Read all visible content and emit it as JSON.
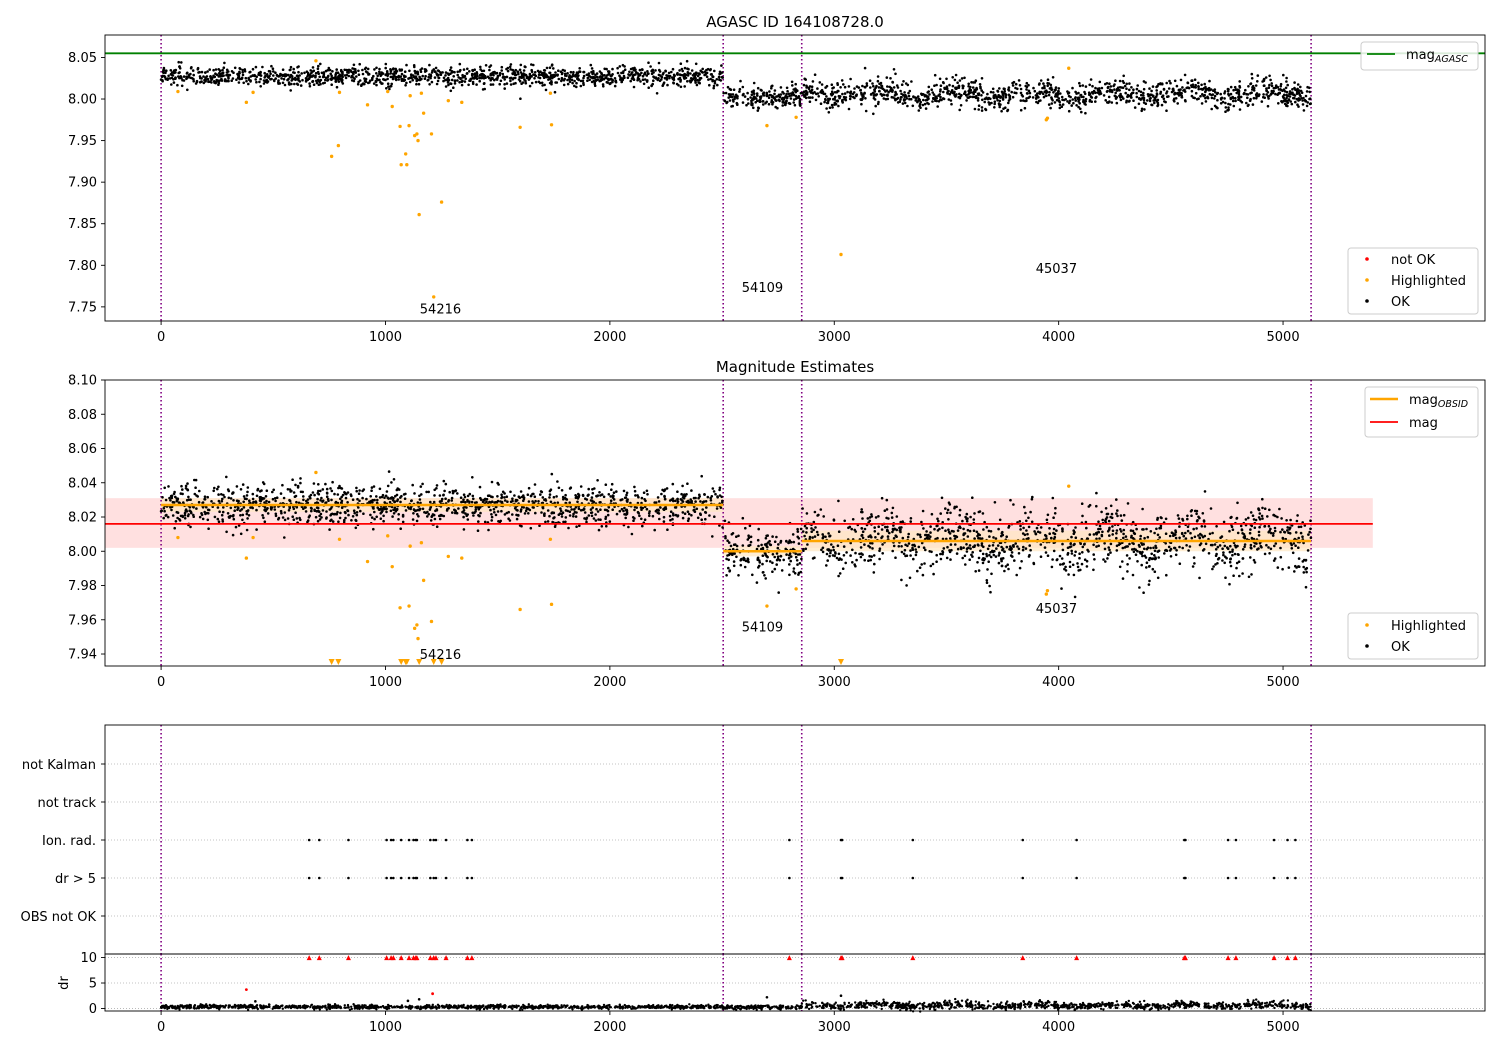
{
  "figure": {
    "title": "AGASC ID 164108728.0"
  },
  "colors": {
    "ok": "#000000",
    "highlighted": "#ffa500",
    "not_ok": "#ff0000",
    "mag_agasc": "#008000",
    "mag_obsid": "#ffa500",
    "mag": "#ff0000",
    "obsid_line": "#800080",
    "band_mag": "#ffcccc",
    "band_obsid": "#ffe7c2"
  },
  "chart_data": [
    {
      "id": "top",
      "type": "scatter",
      "title": "",
      "xlim": [
        -250,
        5900
      ],
      "ylim": [
        7.733,
        8.077
      ],
      "x_ticks": [
        0,
        1000,
        2000,
        3000,
        4000,
        5000
      ],
      "x_tick_labels": [
        "0",
        "1000",
        "2000",
        "3000",
        "4000",
        "5000"
      ],
      "y_ticks": [
        7.75,
        7.8,
        7.85,
        7.9,
        7.95,
        8.0,
        8.05
      ],
      "y_tick_labels": [
        "7.75",
        "7.80",
        "7.85",
        "7.90",
        "7.95",
        "8.00",
        "8.05"
      ],
      "obsid_boundaries": [
        0,
        2505,
        2855,
        5125
      ],
      "obsid_labels": [
        {
          "text": "54216",
          "x": 1245,
          "y": 7.742
        },
        {
          "text": "54109",
          "x": 2680,
          "y": 7.768
        },
        {
          "text": "45037",
          "x": 3990,
          "y": 7.791
        }
      ],
      "mag_agasc": 8.055,
      "legend_upper": {
        "placement": "top-right",
        "entries": [
          "mag_AGASC"
        ],
        "main": "mag",
        "sub": "AGASC"
      },
      "legend_lower": {
        "placement": "bottom-right",
        "entries": [
          "not OK",
          "Highlighted",
          "OK"
        ]
      },
      "series": [
        {
          "name": "OK",
          "segments": [
            {
              "x0": 0,
              "x1": 2505,
              "mean": 8.027,
              "spread": 0.006
            },
            {
              "x0": 2505,
              "x1": 2855,
              "mean": 8.002,
              "spread": 0.006
            },
            {
              "x0": 2855,
              "x1": 5125,
              "mean": 8.006,
              "spread": 0.008
            }
          ]
        },
        {
          "name": "Highlighted",
          "points": [
            [
              75,
              8.009
            ],
            [
              380,
              7.996
            ],
            [
              410,
              8.008
            ],
            [
              690,
              8.046
            ],
            [
              760,
              7.931
            ],
            [
              790,
              7.944
            ],
            [
              795,
              8.008
            ],
            [
              920,
              7.993
            ],
            [
              1010,
              8.009
            ],
            [
              1030,
              7.991
            ],
            [
              1065,
              7.967
            ],
            [
              1070,
              7.921
            ],
            [
              1090,
              7.934
            ],
            [
              1095,
              7.921
            ],
            [
              1105,
              7.968
            ],
            [
              1110,
              8.004
            ],
            [
              1130,
              7.956
            ],
            [
              1140,
              7.958
            ],
            [
              1145,
              7.95
            ],
            [
              1150,
              7.861
            ],
            [
              1160,
              8.007
            ],
            [
              1170,
              7.983
            ],
            [
              1205,
              7.958
            ],
            [
              1215,
              7.762
            ],
            [
              1250,
              7.876
            ],
            [
              1280,
              7.998
            ],
            [
              1340,
              7.996
            ],
            [
              1600,
              7.966
            ],
            [
              1735,
              8.007
            ],
            [
              1740,
              7.969
            ],
            [
              2700,
              7.968
            ],
            [
              2830,
              7.978
            ],
            [
              3030,
              7.813
            ],
            [
              3945,
              7.975
            ],
            [
              3950,
              7.977
            ],
            [
              4045,
              8.037
            ]
          ]
        },
        {
          "name": "not OK",
          "points": []
        }
      ]
    },
    {
      "id": "middle",
      "type": "scatter",
      "title": "Magnitude Estimates",
      "xlim": [
        -250,
        5900
      ],
      "ylim": [
        7.933,
        8.1
      ],
      "x_ticks": [
        0,
        1000,
        2000,
        3000,
        4000,
        5000
      ],
      "x_tick_labels": [
        "0",
        "1000",
        "2000",
        "3000",
        "4000",
        "5000"
      ],
      "y_ticks": [
        7.94,
        7.96,
        7.98,
        8.0,
        8.02,
        8.04,
        8.06,
        8.08,
        8.1
      ],
      "y_tick_labels": [
        "7.94",
        "7.96",
        "7.98",
        "8.00",
        "8.02",
        "8.04",
        "8.06",
        "8.08",
        "8.10"
      ],
      "obsid_boundaries": [
        0,
        2505,
        2855,
        5125
      ],
      "obsid_labels": [
        {
          "text": "54216",
          "x": 1245,
          "y": 7.937
        },
        {
          "text": "54109",
          "x": 2680,
          "y": 7.953
        },
        {
          "text": "45037",
          "x": 3990,
          "y": 7.964
        }
      ],
      "mag": 8.016,
      "mag_band": [
        8.002,
        8.031
      ],
      "mag_band_xlim": [
        -250,
        5400
      ],
      "mag_obsid": [
        {
          "x0": 0,
          "x1": 2505,
          "value": 8.027,
          "band": [
            8.023,
            8.031
          ]
        },
        {
          "x0": 2505,
          "x1": 2855,
          "value": 8.0,
          "band": [
            7.997,
            8.003
          ]
        },
        {
          "x0": 2855,
          "x1": 5125,
          "value": 8.006,
          "band": [
            8.0,
            8.012
          ]
        }
      ],
      "legend_upper": {
        "placement": "top-right",
        "entries": [
          "mag_OBSID",
          "mag"
        ],
        "main": "mag",
        "sub": "OBSID"
      },
      "legend_lower": {
        "placement": "bottom-right",
        "entries": [
          "Highlighted",
          "OK"
        ]
      },
      "series": [
        {
          "name": "OK",
          "segments": [
            {
              "x0": 0,
              "x1": 2505,
              "mean": 8.027,
              "spread": 0.006
            },
            {
              "x0": 2505,
              "x1": 2855,
              "mean": 7.999,
              "spread": 0.007
            },
            {
              "x0": 2855,
              "x1": 5125,
              "mean": 8.006,
              "spread": 0.009
            }
          ]
        },
        {
          "name": "Highlighted",
          "points": [
            [
              75,
              8.008
            ],
            [
              380,
              7.996
            ],
            [
              410,
              8.008
            ],
            [
              690,
              8.046
            ],
            [
              795,
              8.007
            ],
            [
              920,
              7.994
            ],
            [
              1010,
              8.009
            ],
            [
              1030,
              7.991
            ],
            [
              1065,
              7.967
            ],
            [
              1105,
              7.968
            ],
            [
              1110,
              8.003
            ],
            [
              1130,
              7.955
            ],
            [
              1140,
              7.957
            ],
            [
              1145,
              7.949
            ],
            [
              1160,
              8.005
            ],
            [
              1170,
              7.983
            ],
            [
              1205,
              7.959
            ],
            [
              1280,
              7.997
            ],
            [
              1340,
              7.996
            ],
            [
              1600,
              7.966
            ],
            [
              1735,
              8.007
            ],
            [
              1740,
              7.969
            ],
            [
              2700,
              7.968
            ],
            [
              2830,
              7.978
            ],
            [
              3945,
              7.975
            ],
            [
              3950,
              7.977
            ],
            [
              4045,
              8.038
            ]
          ]
        },
        {
          "name": "Highlighted (below axis)",
          "x": [
            760,
            790,
            1070,
            1090,
            1095,
            1150,
            1215,
            1250,
            3030
          ]
        }
      ]
    },
    {
      "id": "flags",
      "type": "scatter",
      "title": "",
      "category_labels": [
        "not Kalman",
        "not track",
        "Ion. rad.",
        "dr > 5",
        "OBS not OK"
      ],
      "obsid_boundaries": [
        0,
        2505,
        2855,
        5125
      ],
      "flag_x": [
        660,
        705,
        835,
        1005,
        1025,
        1035,
        1070,
        1105,
        1125,
        1135,
        1140,
        1200,
        1215,
        1225,
        1270,
        1365,
        1385,
        2800,
        3030,
        3035,
        3350,
        3840,
        4080,
        4560,
        4565,
        4755,
        4790,
        4960,
        5020,
        5055
      ],
      "rows_flagged": [
        "Ion. rad.",
        "dr > 5"
      ]
    },
    {
      "id": "dr",
      "type": "scatter",
      "title": "",
      "ylabel": "dr",
      "xlim": [
        -250,
        5900
      ],
      "ylim": [
        -0.5,
        10.7
      ],
      "x_ticks": [
        0,
        1000,
        2000,
        3000,
        4000,
        5000
      ],
      "x_tick_labels": [
        "0",
        "1000",
        "2000",
        "3000",
        "4000",
        "5000"
      ],
      "y_ticks": [
        0,
        5,
        10
      ],
      "y_tick_labels": [
        "0",
        "5",
        "10"
      ],
      "obsid_boundaries": [
        0,
        2505,
        2855,
        5125
      ],
      "markers_at_10": [
        660,
        705,
        835,
        1005,
        1025,
        1035,
        1070,
        1105,
        1125,
        1135,
        1140,
        1200,
        1215,
        1225,
        1270,
        1365,
        1385,
        2800,
        3030,
        3035,
        3350,
        3840,
        4080,
        4560,
        4565,
        4755,
        4790,
        4960,
        5020,
        5055
      ],
      "red_points": [
        [
          380,
          3.7
        ],
        [
          1210,
          2.9
        ]
      ],
      "outliers": [
        [
          420,
          1.4
        ],
        [
          1100,
          1.5
        ],
        [
          1150,
          1.8
        ],
        [
          2700,
          2.2
        ],
        [
          3030,
          2.5
        ]
      ],
      "series": [
        {
          "name": "dr",
          "segments": [
            {
              "x0": 0,
              "x1": 2505,
              "mean": 0.3,
              "spread": 0.2
            },
            {
              "x0": 2505,
              "x1": 2855,
              "mean": 0.25,
              "spread": 0.2
            },
            {
              "x0": 2855,
              "x1": 5125,
              "mean": 0.6,
              "spread": 0.35
            }
          ]
        }
      ]
    }
  ]
}
